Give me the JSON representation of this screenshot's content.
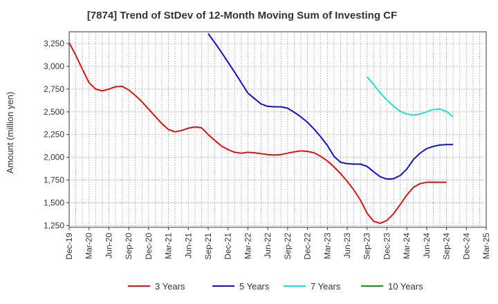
{
  "chart_data": {
    "type": "line",
    "title": "[7874]  Trend of StDev of 12-Month Moving Sum of Investing CF",
    "xlabel": "",
    "ylabel": "Amount (million yen)",
    "ylim": [
      1230,
      3380
    ],
    "yticks": [
      1250,
      1500,
      1750,
      2000,
      2250,
      2500,
      2750,
      3000,
      3250
    ],
    "ytick_labels": [
      "1,250",
      "1,500",
      "1,750",
      "2,000",
      "2,250",
      "2,500",
      "2,750",
      "3,000",
      "3,250"
    ],
    "x_tick_labels": [
      "Dec-19",
      "Mar-20",
      "Jun-20",
      "Sep-20",
      "Dec-20",
      "Mar-21",
      "Jun-21",
      "Sep-21",
      "Dec-21",
      "Mar-22",
      "Jun-22",
      "Sep-22",
      "Dec-22",
      "Mar-23",
      "Jun-23",
      "Sep-23",
      "Dec-23",
      "Mar-24",
      "Jun-24",
      "Sep-24",
      "Dec-24",
      "Mar-25"
    ],
    "grid": true,
    "legend_position": "bottom",
    "series": [
      {
        "name": "3 Years",
        "color": "#dd1111",
        "start_month": "Dec-19",
        "values": [
          3260,
          3120,
          2970,
          2820,
          2750,
          2730,
          2750,
          2775,
          2780,
          2740,
          2680,
          2610,
          2530,
          2450,
          2370,
          2305,
          2280,
          2295,
          2320,
          2335,
          2325,
          2250,
          2185,
          2125,
          2085,
          2055,
          2045,
          2055,
          2050,
          2040,
          2030,
          2025,
          2030,
          2045,
          2060,
          2070,
          2065,
          2050,
          2010,
          1960,
          1895,
          1820,
          1735,
          1640,
          1530,
          1385,
          1295,
          1275,
          1305,
          1380,
          1480,
          1585,
          1670,
          1710,
          1725,
          1727,
          1726,
          1725
        ]
      },
      {
        "name": "5 Years",
        "color": "#1111cc",
        "start_month": "Sep-21",
        "values": [
          3360,
          3260,
          3155,
          3045,
          2935,
          2820,
          2705,
          2645,
          2585,
          2560,
          2555,
          2555,
          2540,
          2495,
          2445,
          2385,
          2310,
          2225,
          2130,
          2010,
          1945,
          1930,
          1925,
          1925,
          1900,
          1840,
          1785,
          1760,
          1765,
          1800,
          1870,
          1975,
          2045,
          2095,
          2120,
          2135,
          2140,
          2140
        ]
      },
      {
        "name": "7 Years",
        "color": "#22dddd",
        "start_month": "Sep-23",
        "values": [
          2885,
          2800,
          2705,
          2630,
          2560,
          2505,
          2475,
          2465,
          2475,
          2500,
          2525,
          2530,
          2505,
          2445
        ]
      },
      {
        "name": "10 Years",
        "color": "#228822",
        "start_month": "",
        "values": []
      }
    ]
  }
}
